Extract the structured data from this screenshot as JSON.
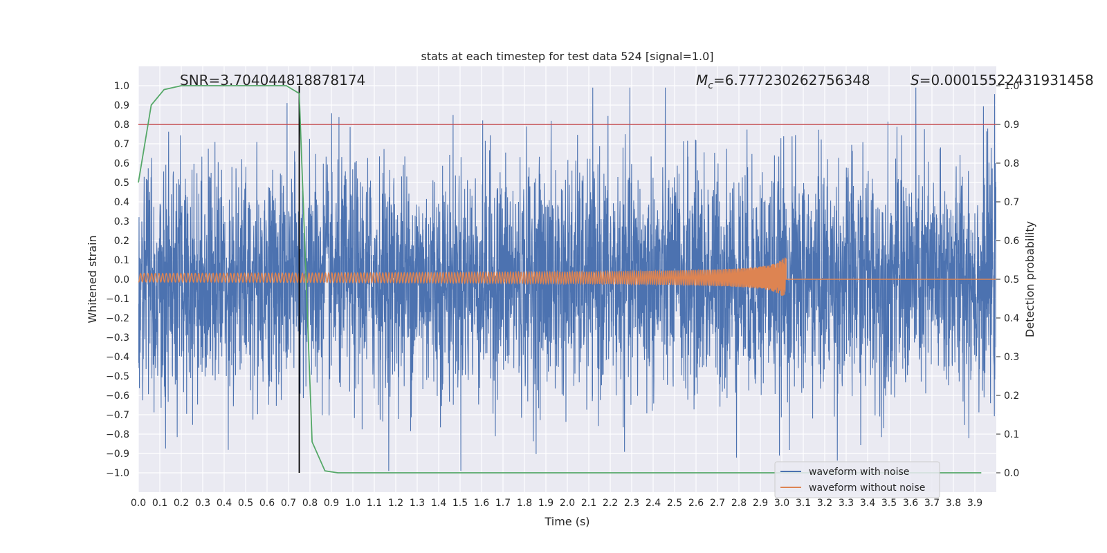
{
  "chart_data": {
    "type": "line",
    "title": "stats at each timestep for test data 524 [signal=1.0]",
    "xlabel": "Time (s)",
    "ylabel": "Whitened strain",
    "y2label": "Detection probability",
    "xlim": [
      0.0,
      4.0
    ],
    "ylim": [
      -1.1,
      1.1
    ],
    "y2lim": [
      -0.05,
      1.05
    ],
    "x_ticks": [
      "0.0",
      "0.1",
      "0.2",
      "0.3",
      "0.4",
      "0.5",
      "0.6",
      "0.7",
      "0.8",
      "0.9",
      "1.0",
      "1.1",
      "1.2",
      "1.3",
      "1.4",
      "1.5",
      "1.6",
      "1.7",
      "1.8",
      "1.9",
      "2.0",
      "2.1",
      "2.2",
      "2.3",
      "2.4",
      "2.5",
      "2.6",
      "2.7",
      "2.8",
      "2.9",
      "3.0",
      "3.1",
      "3.2",
      "3.3",
      "3.4",
      "3.5",
      "3.6",
      "3.7",
      "3.8",
      "3.9"
    ],
    "y_ticks": [
      "1.0",
      "0.9",
      "0.8",
      "0.7",
      "0.6",
      "0.5",
      "0.4",
      "0.3",
      "0.2",
      "0.1",
      "0.0",
      "−0.1",
      "−0.2",
      "−0.3",
      "−0.4",
      "−0.5",
      "−0.6",
      "−0.7",
      "−0.8",
      "−0.9",
      "−1.0"
    ],
    "y2_ticks": [
      "1.0",
      "0.9",
      "0.8",
      "0.7",
      "0.6",
      "0.5",
      "0.4",
      "0.3",
      "0.2",
      "0.1",
      "0.0"
    ],
    "annotations": {
      "snr": "SNR=3.704044818878174",
      "mc_symbol": "M",
      "mc_sub": "c",
      "mc_value": "=6.777230262756348",
      "s_symbol": "S",
      "s_value": "=0.00015522431931458"
    },
    "threshold_line": {
      "y2": 0.9,
      "color": "#c44e52"
    },
    "vertical_marker": {
      "x": 0.75,
      "color": "#000000"
    },
    "series": [
      {
        "name": "waveform with noise",
        "color": "#4c72b0",
        "amplitude_sd": 0.3,
        "extremes": [
          1.0,
          -0.99
        ]
      },
      {
        "name": "waveform without noise",
        "color": "#dd8452",
        "chirp_end_x": 3.02,
        "chirp_end_amplitude": 0.1
      }
    ],
    "detection_probability": {
      "color": "#55a868",
      "x": [
        0.0,
        0.06,
        0.12,
        0.2,
        0.3,
        0.4,
        0.5,
        0.6,
        0.69,
        0.75,
        0.81,
        0.87,
        0.93,
        1.0,
        1.5,
        2.0,
        2.5,
        3.0,
        3.5,
        3.93
      ],
      "y": [
        0.75,
        0.95,
        0.99,
        1.0,
        1.0,
        1.0,
        1.0,
        1.0,
        1.0,
        0.98,
        0.08,
        0.005,
        0.0,
        0.0,
        0.0,
        0.0,
        0.0,
        0.0,
        0.0,
        0.0
      ]
    },
    "legend": {
      "position": "lower-right",
      "entries": [
        "waveform with noise",
        "waveform without noise"
      ]
    },
    "grid": true,
    "colors": {
      "background": "#eaeaf2",
      "grid": "#ffffff"
    }
  }
}
